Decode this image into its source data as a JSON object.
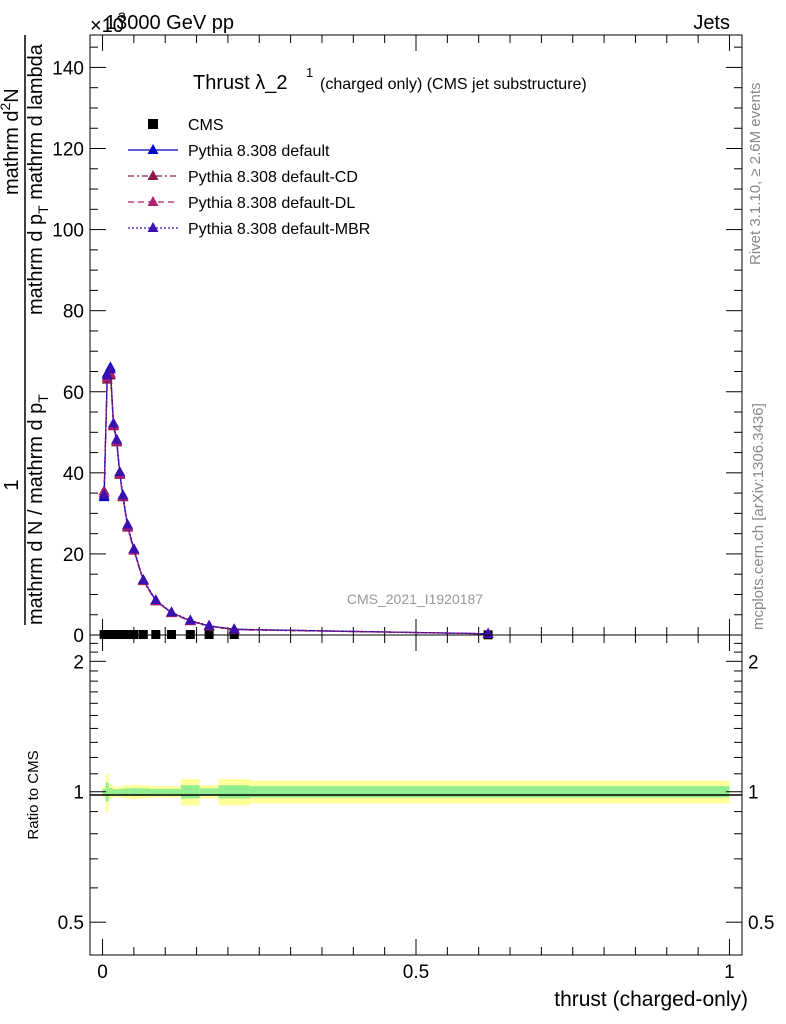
{
  "header": {
    "left": "13000 GeV pp",
    "right": "Jets",
    "multiplier": "×10",
    "multiplier_exp": "3"
  },
  "title": {
    "main": "Thrust λ_2",
    "sup": "1",
    "sub": "(charged only) (CMS jet substructure)"
  },
  "side_labels": {
    "rivet": "Rivet 3.1.10, ≥ 2.6M events",
    "mcplots": "mcplots.cern.ch [arXiv:1306.3436]"
  },
  "watermark": "CMS_2021_I1920187",
  "colors": {
    "cms": "#000000",
    "default": "#0000cc",
    "cd": "#8b1a4a",
    "dl": "#b0206e",
    "mbr": "#3a10b0",
    "band_outer": "#ffff99",
    "band_inner": "#90ee90"
  },
  "chart_data": [
    {
      "type": "line",
      "ylabel": "1 / mathrm d N / mathrm d p_T mathrm d^2N / mathrm d p_T mathrm d lambda",
      "ylabel_parts": {
        "numerator": "1",
        "denominator": "mathrm d N / mathrm d p",
        "denominator_sub": "T",
        "right_numerator": "mathrm d",
        "right_numerator_sup": "2",
        "right_numerator_end": "N",
        "right_denominator": "mathrm d p",
        "right_denominator_sub": "T",
        "right_denominator_end": " mathrm d lambda"
      },
      "xlim": [
        -0.02,
        1.02
      ],
      "ylim": [
        0,
        148
      ],
      "y_unit_multiplier": 1000,
      "yticks": [
        0,
        20,
        40,
        60,
        80,
        100,
        120,
        140
      ],
      "ytick_labels": [
        "0",
        "20",
        "40",
        "60",
        "80",
        "100",
        "120",
        "140"
      ],
      "legend_position": "top-left",
      "series": [
        {
          "name": "CMS",
          "style": "marker",
          "color_key": "cms",
          "x": [
            0.0025,
            0.0075,
            0.0125,
            0.0175,
            0.0225,
            0.0275,
            0.0325,
            0.04,
            0.05,
            0.065,
            0.085,
            0.11,
            0.14,
            0.17,
            0.21,
            0.615
          ],
          "y": [
            0.12,
            0.12,
            0.12,
            0.12,
            0.12,
            0.12,
            0.12,
            0.12,
            0.12,
            0.12,
            0.12,
            0.12,
            0.12,
            0.12,
            0.12,
            0.05
          ]
        },
        {
          "name": "Pythia 8.308 default",
          "style": "solid",
          "color_key": "default",
          "x": [
            0.0025,
            0.0075,
            0.0125,
            0.0175,
            0.0225,
            0.0275,
            0.0325,
            0.04,
            0.05,
            0.065,
            0.085,
            0.11,
            0.14,
            0.17,
            0.21,
            0.615
          ],
          "y": [
            34,
            64.5,
            66,
            52,
            48,
            40,
            34,
            27,
            21,
            13.5,
            8.5,
            5.5,
            3.5,
            2.2,
            1.4,
            0.3
          ]
        },
        {
          "name": "Pythia 8.308 default-CD",
          "style": "dashdot",
          "color_key": "cd",
          "x": [
            0.0025,
            0.0075,
            0.0125,
            0.0175,
            0.0225,
            0.0275,
            0.0325,
            0.04,
            0.05,
            0.065,
            0.085,
            0.11,
            0.14,
            0.17,
            0.21,
            0.615
          ],
          "y": [
            35.5,
            63,
            64,
            51.5,
            47.5,
            39.5,
            34,
            26.5,
            20.8,
            13.3,
            8.3,
            5.4,
            3.4,
            2.1,
            1.3,
            0.3
          ]
        },
        {
          "name": "Pythia 8.308 default-DL",
          "style": "dashed",
          "color_key": "dl",
          "x": [
            0.0025,
            0.0075,
            0.0125,
            0.0175,
            0.0225,
            0.0275,
            0.0325,
            0.04,
            0.05,
            0.065,
            0.085,
            0.11,
            0.14,
            0.17,
            0.21,
            0.615
          ],
          "y": [
            35,
            63.5,
            64.5,
            51.8,
            47.8,
            39.8,
            34.2,
            26.8,
            21,
            13.4,
            8.4,
            5.5,
            3.5,
            2.2,
            1.4,
            0.3
          ]
        },
        {
          "name": "Pythia 8.308 default-MBR",
          "style": "dotted",
          "color_key": "mbr",
          "x": [
            0.0025,
            0.0075,
            0.0125,
            0.0175,
            0.0225,
            0.0275,
            0.0325,
            0.04,
            0.05,
            0.065,
            0.085,
            0.11,
            0.14,
            0.17,
            0.21,
            0.615
          ],
          "y": [
            34.5,
            64,
            65.5,
            52.2,
            48.2,
            40.2,
            34.5,
            27.2,
            21.2,
            13.6,
            8.6,
            5.6,
            3.6,
            2.3,
            1.4,
            0.3
          ]
        }
      ]
    },
    {
      "type": "line",
      "ylabel": "Ratio to CMS",
      "xlabel": "thrust (charged-only)",
      "xlim": [
        -0.02,
        1.02
      ],
      "ylim": [
        0.42,
        2.3
      ],
      "yscale": "log",
      "yticks": [
        0.5,
        1,
        2
      ],
      "ytick_labels": [
        "0.5",
        "1",
        "2"
      ],
      "xticks": [
        0,
        0.5,
        1
      ],
      "xtick_labels": [
        "0",
        "0.5",
        "1"
      ],
      "bands": {
        "x_edges": [
          0,
          0.005,
          0.01,
          0.015,
          0.02,
          0.025,
          0.03,
          0.035,
          0.045,
          0.055,
          0.075,
          0.095,
          0.125,
          0.155,
          0.185,
          0.235,
          1.0
        ],
        "outer_half": [
          0.03,
          0.1,
          0.04,
          0.03,
          0.025,
          0.03,
          0.03,
          0.035,
          0.04,
          0.035,
          0.03,
          0.03,
          0.07,
          0.035,
          0.07,
          0.06
        ],
        "inner_half": [
          0.015,
          0.05,
          0.02,
          0.015,
          0.012,
          0.015,
          0.015,
          0.018,
          0.02,
          0.018,
          0.015,
          0.015,
          0.035,
          0.018,
          0.035,
          0.03
        ]
      }
    }
  ]
}
